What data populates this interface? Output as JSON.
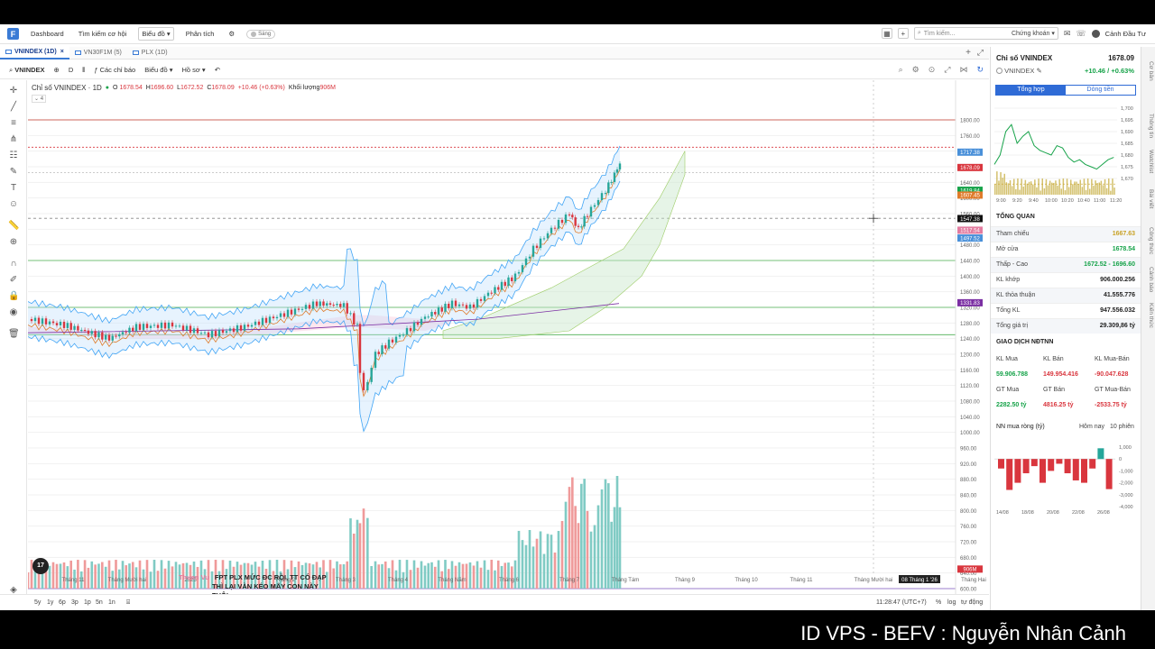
{
  "nav": {
    "items": [
      "Dashboard",
      "Tìm kiếm cơ hội",
      "Biểu đồ",
      "Phân tích"
    ],
    "toggle_label": "Sáng",
    "search_placeholder": "Tìm kiếm...",
    "search_scope": "Chứng khoán",
    "user": "Cảnh Đầu Tư"
  },
  "tabs": [
    {
      "label": "VNINDEX (1D)",
      "active": true
    },
    {
      "label": "VN30F1M (5)",
      "active": false
    },
    {
      "label": "PLX (1D)",
      "active": false
    }
  ],
  "toolbar": {
    "symbol": "VNINDEX",
    "interval": "D",
    "indicators": "Các chỉ báo",
    "chart_type": "Biểu đồ",
    "profile": "Hồ sơ"
  },
  "legend": {
    "title": "Chỉ số VNINDEX · 1D",
    "open_label": "O",
    "open": "1678.54",
    "high_label": "H",
    "high": "1696.60",
    "low_label": "L",
    "low": "1672.52",
    "close_label": "C",
    "close": "1678.09",
    "change": "+10.46 (+0.63%)",
    "volume_label": "Khối lượng",
    "volume": "906M",
    "collapsed_count": "4"
  },
  "price_axis": [
    "1800.00",
    "1760.00",
    "1720.00",
    "1680.00",
    "1640.00",
    "1600.00",
    "1560.00",
    "1520.00",
    "1480.00",
    "1440.00",
    "1400.00",
    "1360.00",
    "1320.00",
    "1280.00",
    "1240.00",
    "1200.00",
    "1160.00",
    "1120.00",
    "1080.00",
    "1040.00",
    "1000.00",
    "960.00",
    "920.00",
    "880.00",
    "840.00",
    "800.00",
    "760.00",
    "720.00",
    "680.00",
    "640.00",
    "600.00"
  ],
  "price_tags": [
    {
      "value": "1717.38",
      "color": "#4a90d9"
    },
    {
      "value": "1678.09",
      "color": "#d9363e"
    },
    {
      "value": "1619.84",
      "color": "#17a34a"
    },
    {
      "value": "1607.45",
      "color": "#e07b2a"
    },
    {
      "value": "1547.38",
      "color": "#111111"
    },
    {
      "value": "1517.54",
      "color": "#e37ca0"
    },
    {
      "value": "1497.52",
      "color": "#4a90d9"
    },
    {
      "value": "1331.83",
      "color": "#7b2fa3"
    },
    {
      "value": "906M",
      "color": "#d9363e"
    }
  ],
  "time_axis": [
    "Tháng 11",
    "Tháng Mười hai",
    "2025",
    "Tháng 2",
    "Tháng 3",
    "Tháng 4",
    "Tháng Năm",
    "Tháng 6",
    "Tháng 7",
    "Tháng Tám",
    "Tháng 9",
    "Tháng 10",
    "Tháng 11",
    "Tháng Mười hai",
    "08 Tháng 1 '26",
    "Tháng Hai"
  ],
  "annotation": {
    "author": "Thuan Vu",
    "lines": [
      "FPT PLX MỨC ĐC RỒI, TT CÓ ĐẠP",
      "THÌ LẠI VÀN KÉO MẤY CON NÀY",
      "THÔI"
    ]
  },
  "bottom": {
    "periods": [
      "5y",
      "1y",
      "6p",
      "3p",
      "1p",
      "5n",
      "1n"
    ],
    "clock": "11:28:47 (UTC+7)",
    "pct": "%",
    "log": "log",
    "auto": "tự động"
  },
  "panel": {
    "title": "Chỉ số VNINDEX",
    "price": "1678.09",
    "symbol": "VNINDEX",
    "change": "+10.46 / +0.63%",
    "tabs": [
      "Tổng hợp",
      "Dòng tiền"
    ],
    "intraday_axis": [
      "1,700",
      "1,695",
      "1,690",
      "1,685",
      "1,680",
      "1,675",
      "1,670"
    ],
    "intraday_times": [
      "9:00",
      "9:20",
      "9:40",
      "10:00",
      "10:20",
      "10:40",
      "11:00",
      "11:20"
    ],
    "overview_title": "TỔNG QUAN",
    "overview": [
      {
        "label": "Tham chiếu",
        "value": "1667.63",
        "color": "#c9a227"
      },
      {
        "label": "Mở cửa",
        "value": "1678.54",
        "color": "#17a34a"
      },
      {
        "label": "Thấp - Cao",
        "value": "1672.52 - 1696.60",
        "color": "#17a34a"
      },
      {
        "label": "KL khớp",
        "value": "906.000.256",
        "color": "#222222"
      },
      {
        "label": "KL thỏa thuận",
        "value": "41.555.776",
        "color": "#222222"
      },
      {
        "label": "Tổng KL",
        "value": "947.556.032",
        "color": "#222222"
      },
      {
        "label": "Tổng giá trị",
        "value": "29.309,86 tỷ",
        "color": "#222222"
      }
    ],
    "foreign_title": "GIAO DỊCH NĐTNN",
    "foreign_headers1": [
      "KL Mua",
      "KL Bán",
      "KL Mua-Bán"
    ],
    "foreign_values1": [
      "59.906.788",
      "149.954.416",
      "-90.047.628"
    ],
    "foreign_headers2": [
      "GT Mua",
      "GT Bán",
      "GT Mua-Bán"
    ],
    "foreign_values2": [
      "2282.50 tỷ",
      "4816.25 tỷ",
      "-2533.75 tỷ"
    ],
    "net_title": "NN mua ròng (tỷ)",
    "net_tabs": [
      "Hôm nay",
      "10 phiên"
    ],
    "net_axis": [
      "1,000",
      "0",
      "-1,000",
      "-2,000",
      "-3,000",
      "-4,000"
    ],
    "net_dates": [
      "14/08",
      "18/08",
      "20/08",
      "22/08",
      "26/08"
    ],
    "net_values": [
      -800,
      -2600,
      -2000,
      -1200,
      -600,
      -2000,
      -1000,
      -400,
      -1200,
      -1800,
      -2000,
      -800,
      900,
      -2533
    ]
  },
  "side_tabs": [
    "Cơ bản",
    "Thông tin",
    "Watchlist",
    "Bài viết",
    "Công thức",
    "Cảnh báo",
    "Kiến thức"
  ],
  "caption": "ID VPS -  BEFV : Nguyễn Nhân Cảnh"
}
